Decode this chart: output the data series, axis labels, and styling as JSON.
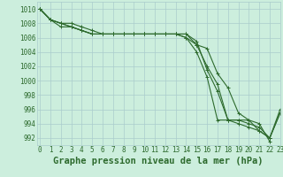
{
  "title": "Graphe pression niveau de la mer (hPa)",
  "bg_color": "#cceedd",
  "grid_color": "#aacccc",
  "line_color": "#2d6a2d",
  "spine_color": "#aacccc",
  "ylim": [
    991,
    1011
  ],
  "xlim": [
    -0.3,
    23
  ],
  "yticks": [
    992,
    994,
    996,
    998,
    1000,
    1002,
    1004,
    1006,
    1008,
    1010
  ],
  "xticks": [
    0,
    1,
    2,
    3,
    4,
    5,
    6,
    7,
    8,
    9,
    10,
    11,
    12,
    13,
    14,
    15,
    16,
    17,
    18,
    19,
    20,
    21,
    22,
    23
  ],
  "series": [
    [
      1010,
      1008.5,
      1008,
      1008,
      1007.5,
      1007,
      1006.5,
      1006.5,
      1006.5,
      1006.5,
      1006.5,
      1006.5,
      1006.5,
      1006.5,
      1006.5,
      1005,
      1004.5,
      1001,
      999,
      995.5,
      994.5,
      994,
      991.5,
      null
    ],
    [
      1010,
      1008.5,
      1008,
      1007.5,
      1007,
      1006.5,
      1006.5,
      1006.5,
      1006.5,
      1006.5,
      1006.5,
      1006.5,
      1006.5,
      1006.5,
      1006.5,
      1005.5,
      1001.5,
      998.5,
      994.5,
      994.5,
      994.0,
      993.5,
      992.0,
      995.5
    ],
    [
      1010,
      1008.5,
      1007.5,
      1007.5,
      1007,
      1006.5,
      1006.5,
      1006.5,
      1006.5,
      1006.5,
      1006.5,
      1006.5,
      1006.5,
      1006.5,
      1006.0,
      1004.0,
      1000.5,
      994.5,
      994.5,
      994.5,
      994.5,
      993.0,
      992.0,
      996.0
    ],
    [
      1010,
      1008.5,
      1008,
      1007.5,
      1007,
      1006.5,
      1006.5,
      1006.5,
      1006.5,
      1006.5,
      1006.5,
      1006.5,
      1006.5,
      1006.5,
      1006.0,
      1005.0,
      1002.0,
      999.5,
      994.5,
      994.0,
      993.5,
      993.0,
      992.0,
      995.5
    ]
  ],
  "marker": "+",
  "markersize": 3,
  "linewidth": 0.8,
  "title_fontsize": 7.5,
  "tick_fontsize": 5.5,
  "title_color": "#2d6a2d"
}
